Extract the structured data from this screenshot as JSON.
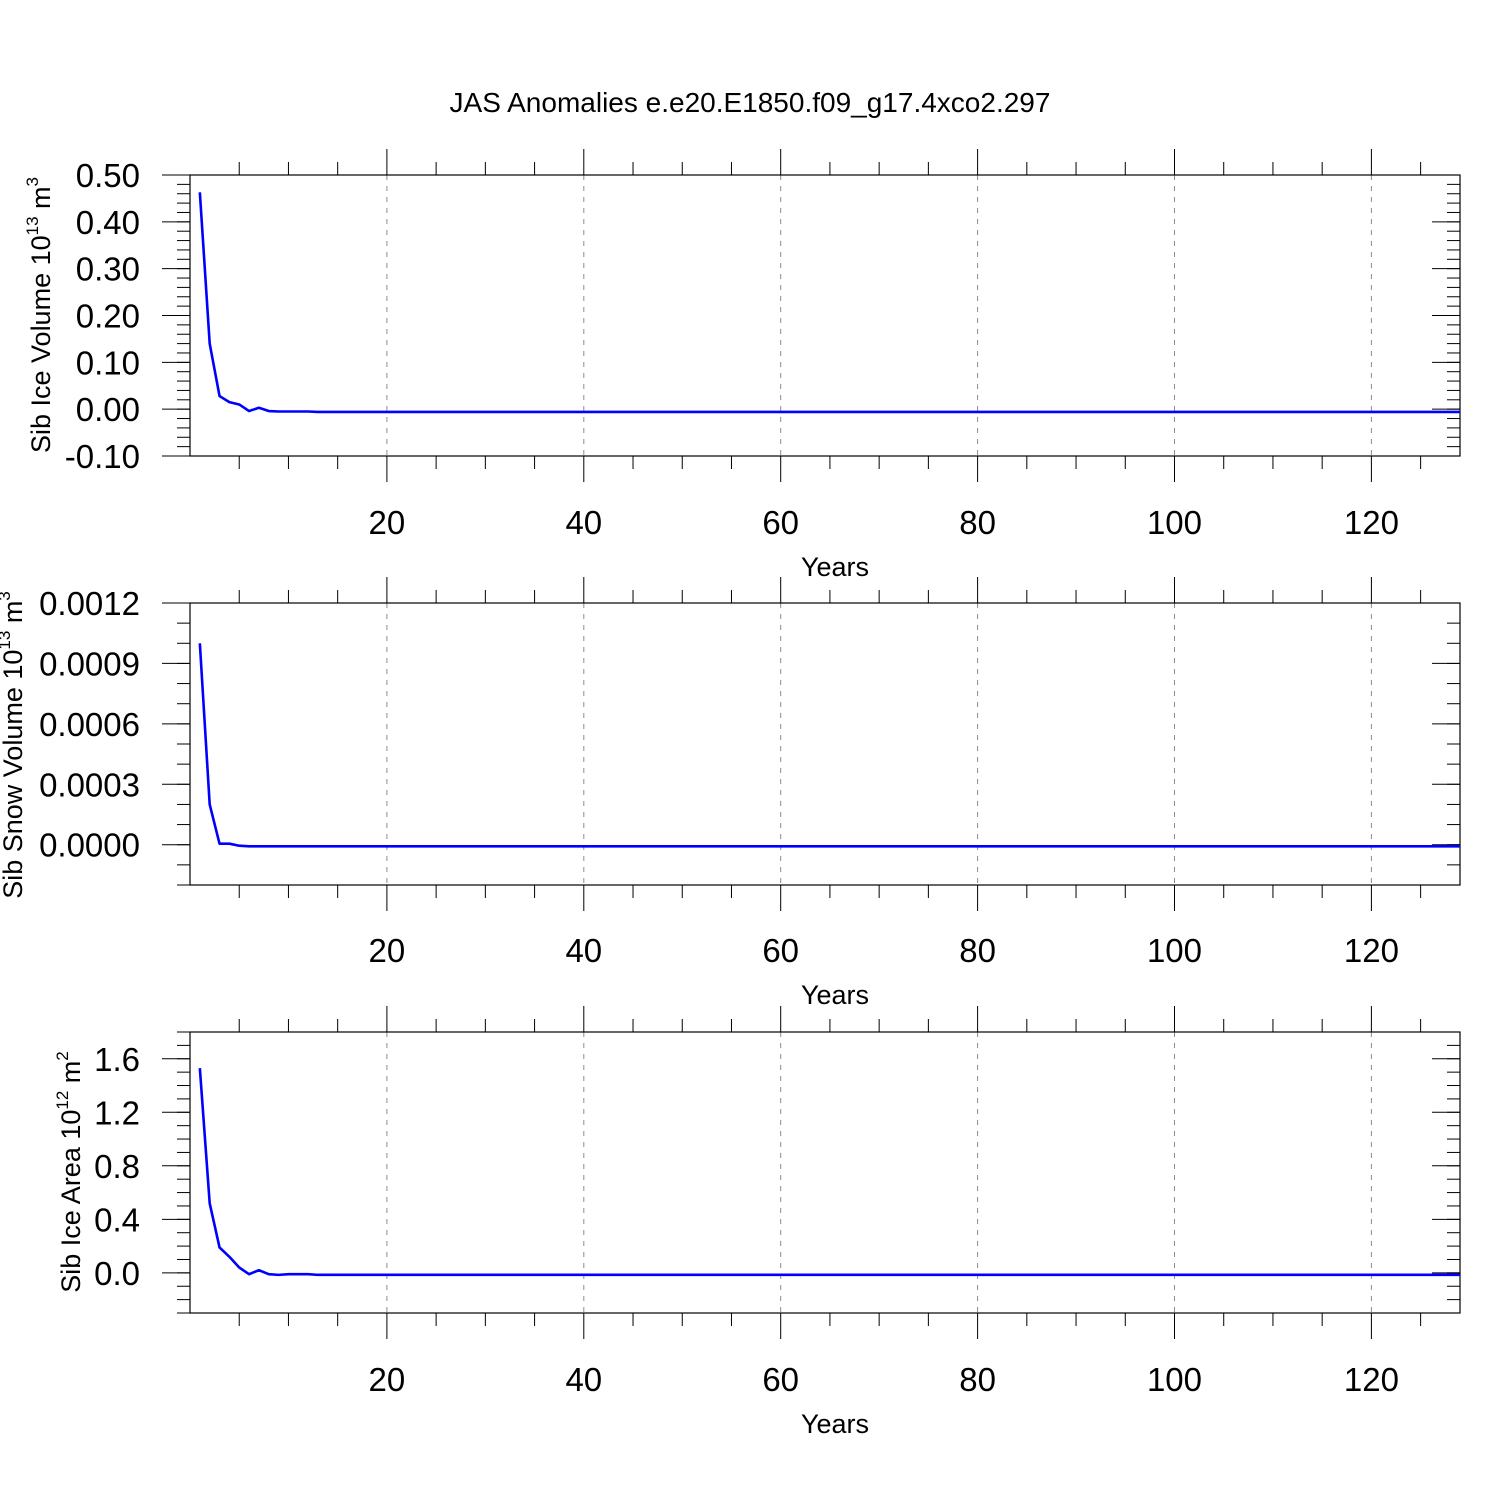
{
  "title": "JAS Anomalies e.e20.E1850.f09_g17.4xco2.297",
  "colors": {
    "series": "#0000ff",
    "grid": "#8c8c8c",
    "frame": "#000000"
  },
  "chart_data": [
    {
      "type": "line",
      "xlabel": "Years",
      "ylabel": {
        "text": "Sib Ice Volume 10",
        "exp": "13",
        "unit": " m",
        "unit_exp": "3"
      },
      "xlim": [
        0,
        129
      ],
      "ylim": [
        -0.1,
        0.5
      ],
      "xticks": [
        20,
        40,
        60,
        80,
        100,
        120
      ],
      "xtick_labels": [
        "20",
        "40",
        "60",
        "80",
        "100",
        "120"
      ],
      "yticks": [
        -0.1,
        0.0,
        0.1,
        0.2,
        0.3,
        0.4,
        0.5
      ],
      "ytick_labels": [
        "-0.10",
        "0.00",
        "0.10",
        "0.20",
        "0.30",
        "0.40",
        "0.50"
      ],
      "y_minor_step": 0.02,
      "grid": "x-dashed",
      "series": [
        {
          "x": [
            1,
            2,
            3,
            4,
            5,
            6,
            7,
            8,
            9,
            10,
            11,
            12,
            13,
            129
          ],
          "y": [
            0.463,
            0.14,
            0.028,
            0.015,
            0.01,
            -0.004,
            0.003,
            -0.004,
            -0.005,
            -0.005,
            -0.005,
            -0.005,
            -0.006,
            -0.006
          ]
        }
      ]
    },
    {
      "type": "line",
      "xlabel": "Years",
      "ylabel": {
        "text": "Sib Snow Volume 10",
        "exp": "13",
        "unit": " m",
        "unit_exp": "3"
      },
      "xlim": [
        0,
        129
      ],
      "ylim": [
        -0.0002,
        0.0012
      ],
      "xticks": [
        20,
        40,
        60,
        80,
        100,
        120
      ],
      "xtick_labels": [
        "20",
        "40",
        "60",
        "80",
        "100",
        "120"
      ],
      "yticks": [
        0.0,
        0.0003,
        0.0006,
        0.0009,
        0.0012
      ],
      "ytick_labels": [
        "0.0000",
        "0.0003",
        "0.0006",
        "0.0009",
        "0.0012"
      ],
      "y_minor_step": 0.0001,
      "grid": "x-dashed",
      "series": [
        {
          "x": [
            1,
            2,
            3,
            4,
            5,
            6,
            129
          ],
          "y": [
            0.001,
            0.0002,
            5e-06,
            5e-06,
            -5e-06,
            -8e-06,
            -8e-06
          ]
        }
      ]
    },
    {
      "type": "line",
      "xlabel": "Years",
      "ylabel": {
        "text": "Sib Ice Area 10",
        "exp": "12",
        "unit": " m",
        "unit_exp": "2"
      },
      "xlim": [
        0,
        129
      ],
      "ylim": [
        -0.3,
        1.8
      ],
      "xticks": [
        20,
        40,
        60,
        80,
        100,
        120
      ],
      "xtick_labels": [
        "20",
        "40",
        "60",
        "80",
        "100",
        "120"
      ],
      "yticks": [
        0.0,
        0.4,
        0.8,
        1.2,
        1.6
      ],
      "ytick_labels": [
        "0.0",
        "0.4",
        "0.8",
        "1.2",
        "1.6"
      ],
      "y_minor_step": 0.1,
      "grid": "x-dashed",
      "series": [
        {
          "x": [
            1,
            2,
            3,
            4,
            5,
            6,
            7,
            8,
            9,
            10,
            11,
            12,
            13,
            129
          ],
          "y": [
            1.53,
            0.52,
            0.19,
            0.12,
            0.04,
            -0.01,
            0.02,
            -0.01,
            -0.015,
            -0.01,
            -0.01,
            -0.01,
            -0.015,
            -0.015
          ]
        }
      ]
    }
  ]
}
